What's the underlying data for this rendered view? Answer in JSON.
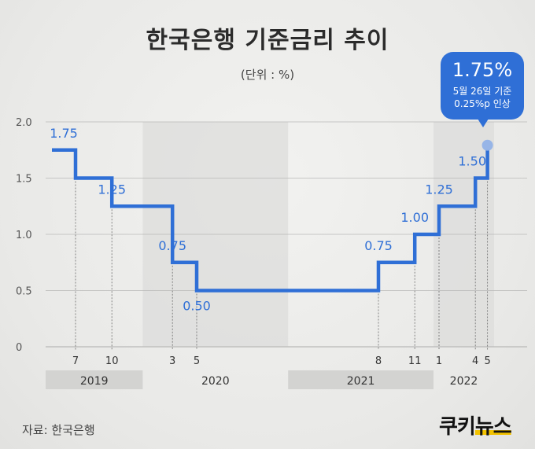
{
  "title": "한국은행 기준금리 추이",
  "unit": "(단위 : %)",
  "source": "자료: 한국은행",
  "logo": {
    "part1": "쿠키",
    "part2": "뉴스"
  },
  "callout": {
    "value": "1.75%",
    "line1": "5월 26일 기준",
    "line2": "0.25%p 인상"
  },
  "colors": {
    "line": "#2f6fd6",
    "shade": "#dcdcda",
    "yearband": "#d3d3d1",
    "text": "#333333",
    "marker": "#8fb0e8"
  },
  "chart_data": {
    "type": "line",
    "step": true,
    "ylim": [
      0,
      2.0
    ],
    "yticks": [
      "0",
      "0.5",
      "1.0",
      "1.5",
      "2.0"
    ],
    "x_ticks": [
      "7",
      "10",
      "3",
      "5",
      "8",
      "11",
      "1",
      "4",
      "5"
    ],
    "years": [
      "2019",
      "2020",
      "2021",
      "2022"
    ],
    "series": [
      {
        "points": [
          {
            "x": "2019-06",
            "y": 1.75
          },
          {
            "x": "2019-07",
            "y": 1.5
          },
          {
            "x": "2019-10",
            "y": 1.25
          },
          {
            "x": "2020-03",
            "y": 0.75
          },
          {
            "x": "2020-05",
            "y": 0.5
          },
          {
            "x": "2021-08",
            "y": 0.75
          },
          {
            "x": "2021-11",
            "y": 1.0
          },
          {
            "x": "2022-01",
            "y": 1.25
          },
          {
            "x": "2022-04",
            "y": 1.5
          },
          {
            "x": "2022-05",
            "y": 1.75
          }
        ]
      }
    ],
    "labels": [
      "1.75",
      "1.25",
      "0.75",
      "0.50",
      "0.75",
      "1.00",
      "1.25",
      "1.50"
    ],
    "grid": true
  }
}
